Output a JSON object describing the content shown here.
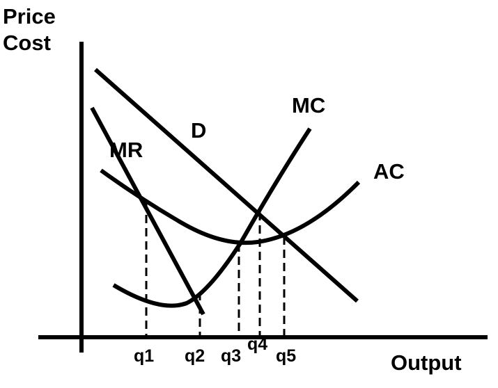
{
  "axes": {
    "y_label_line1": "Price",
    "y_label_line2": "Cost",
    "x_label": "Output"
  },
  "curves": {
    "demand": "D",
    "marginal_revenue": "MR",
    "marginal_cost": "MC",
    "average_cost": "AC"
  },
  "quantities": [
    "q1",
    "q2",
    "q3",
    "q4",
    "q5"
  ]
}
